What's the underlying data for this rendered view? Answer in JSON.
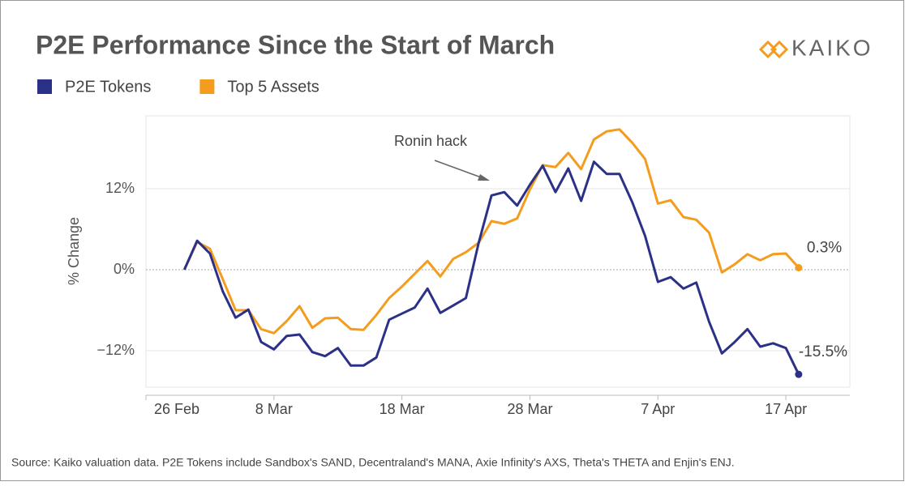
{
  "chart_data": {
    "type": "line",
    "title": "P2E Performance Since the Start of March",
    "logo": "KAIKO",
    "y_label": "% Change",
    "annotation": "Ronin hack",
    "source": "Source: Kaiko valuation data. P2E Tokens include Sandbox's SAND, Decentraland's MANA, Axie Infinity's AXS, Theta's THETA and Enjin's ENJ.",
    "x": [
      "1 Mar",
      "2 Mar",
      "3 Mar",
      "4 Mar",
      "5 Mar",
      "6 Mar",
      "7 Mar",
      "8 Mar",
      "9 Mar",
      "10 Mar",
      "11 Mar",
      "12 Mar",
      "13 Mar",
      "14 Mar",
      "15 Mar",
      "16 Mar",
      "17 Mar",
      "18 Mar",
      "19 Mar",
      "20 Mar",
      "21 Mar",
      "22 Mar",
      "23 Mar",
      "24 Mar",
      "25 Mar",
      "26 Mar",
      "27 Mar",
      "28 Mar",
      "29 Mar",
      "30 Mar",
      "31 Mar",
      "1 Apr",
      "2 Apr",
      "3 Apr",
      "4 Apr",
      "5 Apr",
      "6 Apr",
      "7 Apr",
      "8 Apr",
      "9 Apr",
      "10 Apr",
      "11 Apr",
      "12 Apr",
      "13 Apr",
      "14 Apr",
      "15 Apr",
      "16 Apr",
      "17 Apr",
      "18 Apr"
    ],
    "xlim": [
      "26 Feb",
      "22 Apr"
    ],
    "xticks": [
      "26 Feb",
      "8 Mar",
      "18 Mar",
      "28 Mar",
      "7 Apr",
      "17 Apr"
    ],
    "ylim": [
      -17.4,
      22.8
    ],
    "yticks": [
      {
        "value": -12,
        "label": "−12%"
      },
      {
        "value": 0,
        "label": "0%"
      },
      {
        "value": 12,
        "label": "12%"
      }
    ],
    "grid": true,
    "series": [
      {
        "name": "P2E Tokens",
        "color": "#2b3187",
        "values": [
          0,
          4.3,
          2.4,
          -3.2,
          -7.1,
          -5.9,
          -10.7,
          -11.8,
          -9.8,
          -9.6,
          -12.2,
          -12.8,
          -11.6,
          -14.2,
          -14.2,
          -13.0,
          -7.4,
          -6.5,
          -5.6,
          -2.8,
          -6.4,
          -5.3,
          -4.2,
          4.0,
          11.0,
          11.5,
          9.5,
          12.6,
          15.4,
          11.5,
          15.0,
          10.2,
          16.0,
          14.2,
          14.2,
          10.0,
          5.0,
          -1.8,
          -1.1,
          -2.8,
          -1.9,
          -7.7,
          -12.4,
          -10.7,
          -8.8,
          -11.4,
          -10.9,
          -11.6,
          -15.5
        ],
        "value_labels": [
          null,
          null,
          null,
          null,
          null,
          null,
          null,
          null,
          null,
          null,
          null,
          null,
          null,
          null,
          null,
          null,
          null,
          null,
          null,
          null,
          null,
          null,
          null,
          null,
          null,
          null,
          null,
          null,
          null,
          null,
          null,
          null,
          null,
          null,
          null,
          null,
          null,
          null,
          null,
          null,
          null,
          null,
          null,
          null,
          null,
          null,
          null,
          null,
          "-15.5%"
        ]
      },
      {
        "name": "Top 5 Assets",
        "color": "#f39c1d",
        "values": [
          0,
          4.1,
          3.1,
          -1.4,
          -6.0,
          -6.0,
          -8.8,
          -9.4,
          -7.6,
          -5.4,
          -8.6,
          -7.2,
          -7.1,
          -8.8,
          -8.9,
          -6.7,
          -4.2,
          -2.5,
          -0.6,
          1.3,
          -1.0,
          1.6,
          2.6,
          4.0,
          7.2,
          6.8,
          7.6,
          11.9,
          15.5,
          15.2,
          17.3,
          14.9,
          19.3,
          20.5,
          20.8,
          18.8,
          16.4,
          9.8,
          10.3,
          7.8,
          7.4,
          5.5,
          -0.4,
          0.8,
          2.3,
          1.4,
          2.3,
          2.4,
          0.3
        ],
        "value_labels": [
          null,
          null,
          null,
          null,
          null,
          null,
          null,
          null,
          null,
          null,
          null,
          null,
          null,
          null,
          null,
          null,
          null,
          null,
          null,
          null,
          null,
          null,
          null,
          null,
          null,
          null,
          null,
          null,
          null,
          null,
          null,
          null,
          null,
          null,
          null,
          null,
          null,
          null,
          null,
          null,
          null,
          null,
          null,
          null,
          null,
          null,
          null,
          null,
          "0.3%"
        ]
      }
    ]
  }
}
